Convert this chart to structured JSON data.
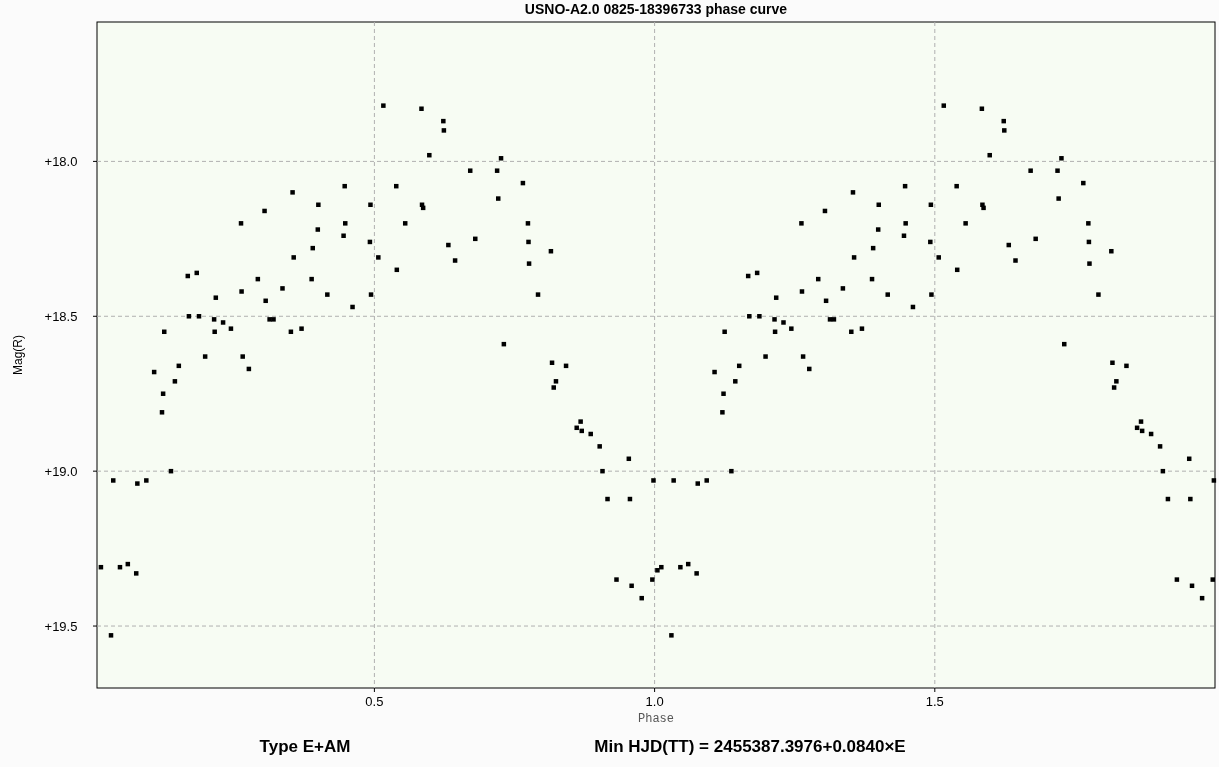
{
  "chart_data": {
    "type": "scatter",
    "title": "USNO-A2.0 0825-18396733 phase curve",
    "xlabel": "Phase",
    "ylabel": "Mag(R)",
    "xlim": [
      0.005,
      2.0
    ],
    "ylim": [
      19.7,
      17.55
    ],
    "xticks": [
      0.5,
      {
        "value": 1,
        "label": "1.0"
      },
      1.5
    ],
    "yticks": [
      {
        "value": 18,
        "label": "+18.0"
      },
      {
        "value": 18.5,
        "label": "+18.5"
      },
      {
        "value": 19,
        "label": "+19.0"
      },
      {
        "value": 19.5,
        "label": "+19.5"
      }
    ],
    "grid": true,
    "marker": "square",
    "annotations": [
      "Type E+AM",
      "Min HJD(TT) = 2455387.3976+0.0840×E"
    ],
    "series": [
      {
        "color": "#000000",
        "x": [
          0.012,
          0.03,
          0.034,
          0.046,
          0.06,
          0.075,
          0.077,
          0.093,
          0.107,
          0.121,
          0.123,
          0.125,
          0.137,
          0.144,
          0.151,
          0.167,
          0.169,
          0.183,
          0.187,
          0.198,
          0.214,
          0.217,
          0.215,
          0.23,
          0.244,
          0.262,
          0.263,
          0.265,
          0.276,
          0.292,
          0.304,
          0.306,
          0.313,
          0.32,
          0.336,
          0.351,
          0.354,
          0.356,
          0.37,
          0.388,
          0.39,
          0.399,
          0.4,
          0.416,
          0.445,
          0.447,
          0.448,
          0.461,
          0.493,
          0.494,
          0.492,
          0.507,
          0.516,
          0.539,
          0.54,
          0.555,
          0.584,
          0.585,
          0.587,
          0.598,
          0.623,
          0.624,
          0.632,
          0.644,
          0.671,
          0.68,
          0.719,
          0.721,
          0.726,
          0.731,
          0.765,
          0.774,
          0.775,
          0.776,
          0.792,
          0.815,
          0.817,
          0.82,
          0.824,
          0.842,
          0.861,
          0.868,
          0.87,
          0.886,
          0.902,
          0.907,
          0.916,
          0.932,
          0.954,
          0.956,
          0.959,
          0.977,
          0.996,
          0.998,
          1.005,
          1.012,
          1.03,
          1.034,
          1.046,
          1.06,
          1.075,
          1.077,
          1.093,
          1.107,
          1.121,
          1.123,
          1.125,
          1.137,
          1.144,
          1.151,
          1.167,
          1.169,
          1.183,
          1.187,
          1.198,
          1.214,
          1.217,
          1.215,
          1.23,
          1.244,
          1.262,
          1.263,
          1.265,
          1.276,
          1.292,
          1.304,
          1.306,
          1.313,
          1.32,
          1.336,
          1.351,
          1.354,
          1.356,
          1.37,
          1.388,
          1.39,
          1.399,
          1.4,
          1.416,
          1.445,
          1.447,
          1.448,
          1.461,
          1.493,
          1.494,
          1.492,
          1.507,
          1.516,
          1.539,
          1.54,
          1.555,
          1.584,
          1.585,
          1.587,
          1.598,
          1.623,
          1.624,
          1.632,
          1.644,
          1.671,
          1.68,
          1.719,
          1.721,
          1.726,
          1.731,
          1.765,
          1.774,
          1.775,
          1.776,
          1.792,
          1.815,
          1.817,
          1.82,
          1.824,
          1.842,
          1.861,
          1.868,
          1.87,
          1.886,
          1.902,
          1.907,
          1.916,
          1.932,
          1.954,
          1.956,
          1.959,
          1.977,
          1.996,
          1.998
        ],
        "values": [
          19.31,
          19.53,
          19.03,
          19.31,
          19.3,
          19.33,
          19.04,
          19.03,
          18.68,
          18.81,
          18.75,
          18.55,
          19.0,
          18.71,
          18.66,
          18.37,
          18.5,
          18.36,
          18.5,
          18.63,
          18.51,
          18.44,
          18.55,
          18.52,
          18.54,
          18.2,
          18.42,
          18.63,
          18.67,
          18.38,
          18.16,
          18.45,
          18.51,
          18.51,
          18.41,
          18.55,
          18.1,
          18.31,
          18.54,
          18.38,
          18.28,
          18.22,
          18.14,
          18.43,
          18.24,
          18.08,
          18.2,
          18.47,
          18.14,
          18.43,
          18.26,
          18.31,
          17.82,
          18.08,
          18.35,
          18.2,
          17.83,
          18.14,
          18.15,
          17.98,
          17.87,
          17.9,
          18.27,
          18.32,
          18.03,
          18.25,
          18.03,
          18.12,
          17.99,
          18.59,
          18.07,
          18.2,
          18.26,
          18.33,
          18.43,
          18.29,
          18.65,
          18.73,
          18.71,
          18.66,
          18.86,
          18.84,
          18.87,
          18.88,
          18.92,
          19.0,
          19.09,
          19.35,
          18.96,
          19.09,
          19.37,
          19.41,
          19.35,
          19.03,
          19.32,
          19.31,
          19.53,
          19.03,
          19.31,
          19.3,
          19.33,
          19.04,
          19.03,
          18.68,
          18.81,
          18.75,
          18.55,
          19.0,
          18.71,
          18.66,
          18.37,
          18.5,
          18.36,
          18.5,
          18.63,
          18.51,
          18.44,
          18.55,
          18.52,
          18.54,
          18.2,
          18.42,
          18.63,
          18.67,
          18.38,
          18.16,
          18.45,
          18.51,
          18.51,
          18.41,
          18.55,
          18.1,
          18.31,
          18.54,
          18.38,
          18.28,
          18.22,
          18.14,
          18.43,
          18.24,
          18.08,
          18.2,
          18.47,
          18.14,
          18.43,
          18.26,
          18.31,
          17.82,
          18.08,
          18.35,
          18.2,
          17.83,
          18.14,
          18.15,
          17.98,
          17.87,
          17.9,
          18.27,
          18.32,
          18.03,
          18.25,
          18.03,
          18.12,
          17.99,
          18.59,
          18.07,
          18.2,
          18.26,
          18.33,
          18.43,
          18.29,
          18.65,
          18.73,
          18.71,
          18.66,
          18.86,
          18.84,
          18.87,
          18.88,
          18.92,
          19.0,
          19.09,
          19.35,
          18.96,
          19.09,
          19.37,
          19.41,
          19.35,
          19.03
        ]
      }
    ]
  }
}
